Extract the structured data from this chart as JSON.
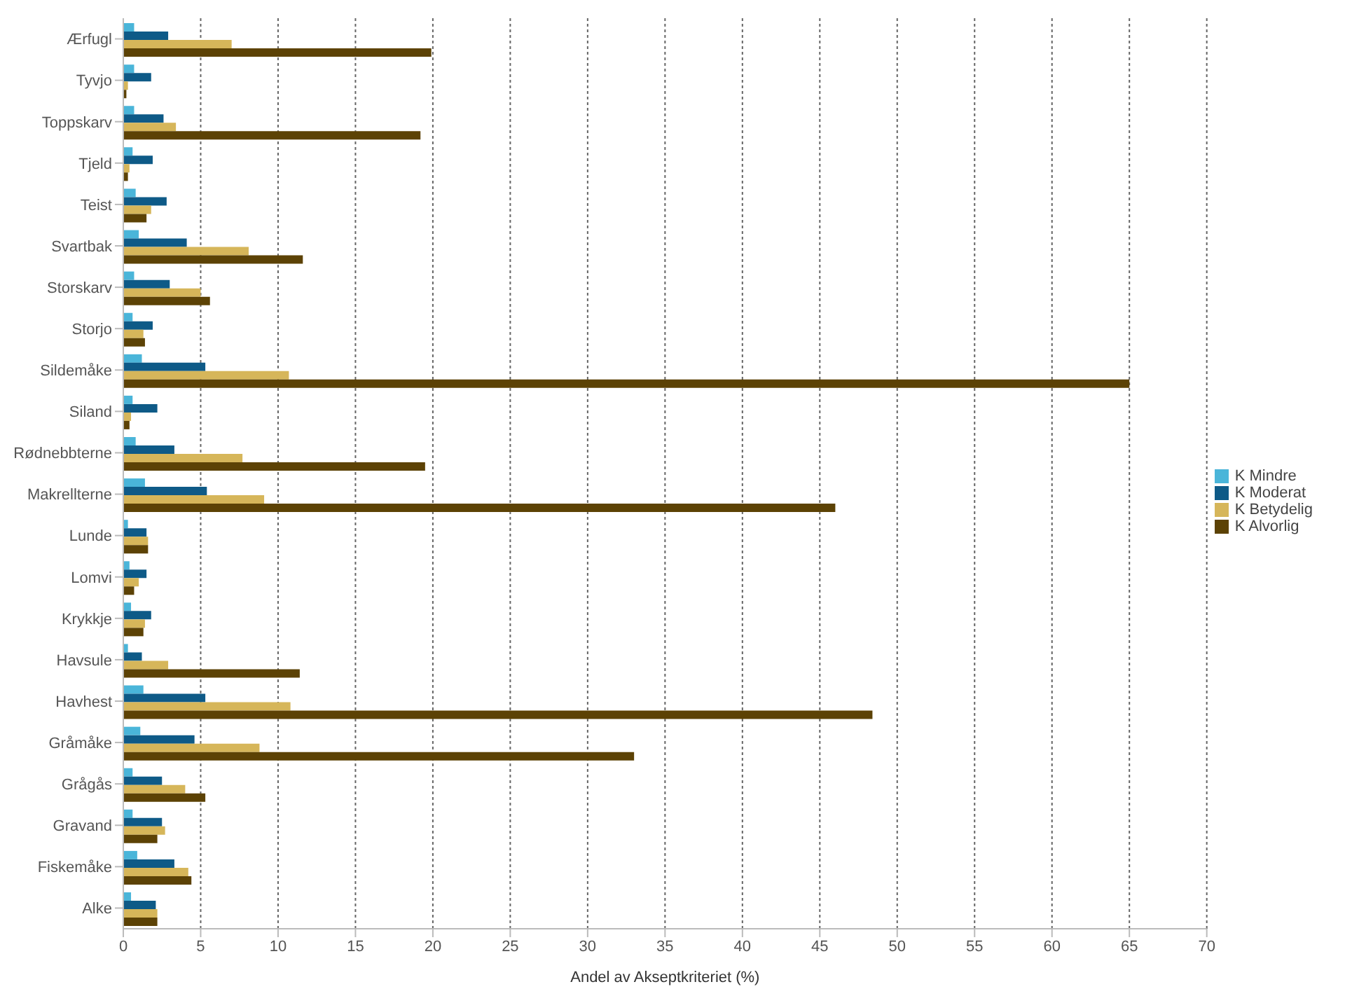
{
  "chart_data": {
    "type": "bar",
    "orientation": "horizontal",
    "xlabel": "Andel av Akseptkriteriet (%)",
    "categories": [
      "Ærfugl",
      "Tyvjo",
      "Toppskarv",
      "Tjeld",
      "Teist",
      "Svartbak",
      "Storskarv",
      "Storjo",
      "Sildemåke",
      "Siland",
      "Rødnebbterne",
      "Makrellterne",
      "Lunde",
      "Lomvi",
      "Krykkje",
      "Havsule",
      "Havhest",
      "Gråmåke",
      "Grågås",
      "Gravand",
      "Fiskemåke",
      "Alke"
    ],
    "series": [
      {
        "name": "K Mindre",
        "color": "#4ab5d9",
        "values": [
          0.7,
          0.7,
          0.7,
          0.6,
          0.8,
          1.0,
          0.7,
          0.6,
          1.2,
          0.6,
          0.8,
          1.4,
          0.3,
          0.4,
          0.5,
          0.3,
          1.3,
          1.1,
          0.6,
          0.6,
          0.9,
          0.5
        ]
      },
      {
        "name": "K Moderat",
        "color": "#0e5a87",
        "values": [
          2.9,
          1.8,
          2.6,
          1.9,
          2.8,
          4.1,
          3.0,
          1.9,
          5.3,
          2.2,
          3.3,
          5.4,
          1.5,
          1.5,
          1.8,
          1.2,
          5.3,
          4.6,
          2.5,
          2.5,
          3.3,
          2.1
        ]
      },
      {
        "name": "K Betydelig",
        "color": "#d6b65a",
        "values": [
          7.0,
          0.3,
          3.4,
          0.4,
          1.8,
          8.1,
          5.0,
          1.3,
          10.7,
          0.5,
          7.7,
          9.1,
          1.6,
          1.0,
          1.4,
          2.9,
          10.8,
          8.8,
          4.0,
          2.7,
          4.2,
          2.2
        ]
      },
      {
        "name": "K Alvorlig",
        "color": "#5c4205",
        "values": [
          19.9,
          0.2,
          19.2,
          0.3,
          1.5,
          11.6,
          5.6,
          1.4,
          65.0,
          0.4,
          19.5,
          46.0,
          1.6,
          0.7,
          1.3,
          11.4,
          48.4,
          33.0,
          5.3,
          2.2,
          4.4,
          2.2
        ]
      }
    ],
    "xlim": [
      0,
      70
    ],
    "xticks": [
      0,
      5,
      10,
      15,
      20,
      25,
      30,
      35,
      40,
      45,
      50,
      55,
      60,
      65,
      70
    ],
    "grid": "x",
    "legend": "right"
  }
}
